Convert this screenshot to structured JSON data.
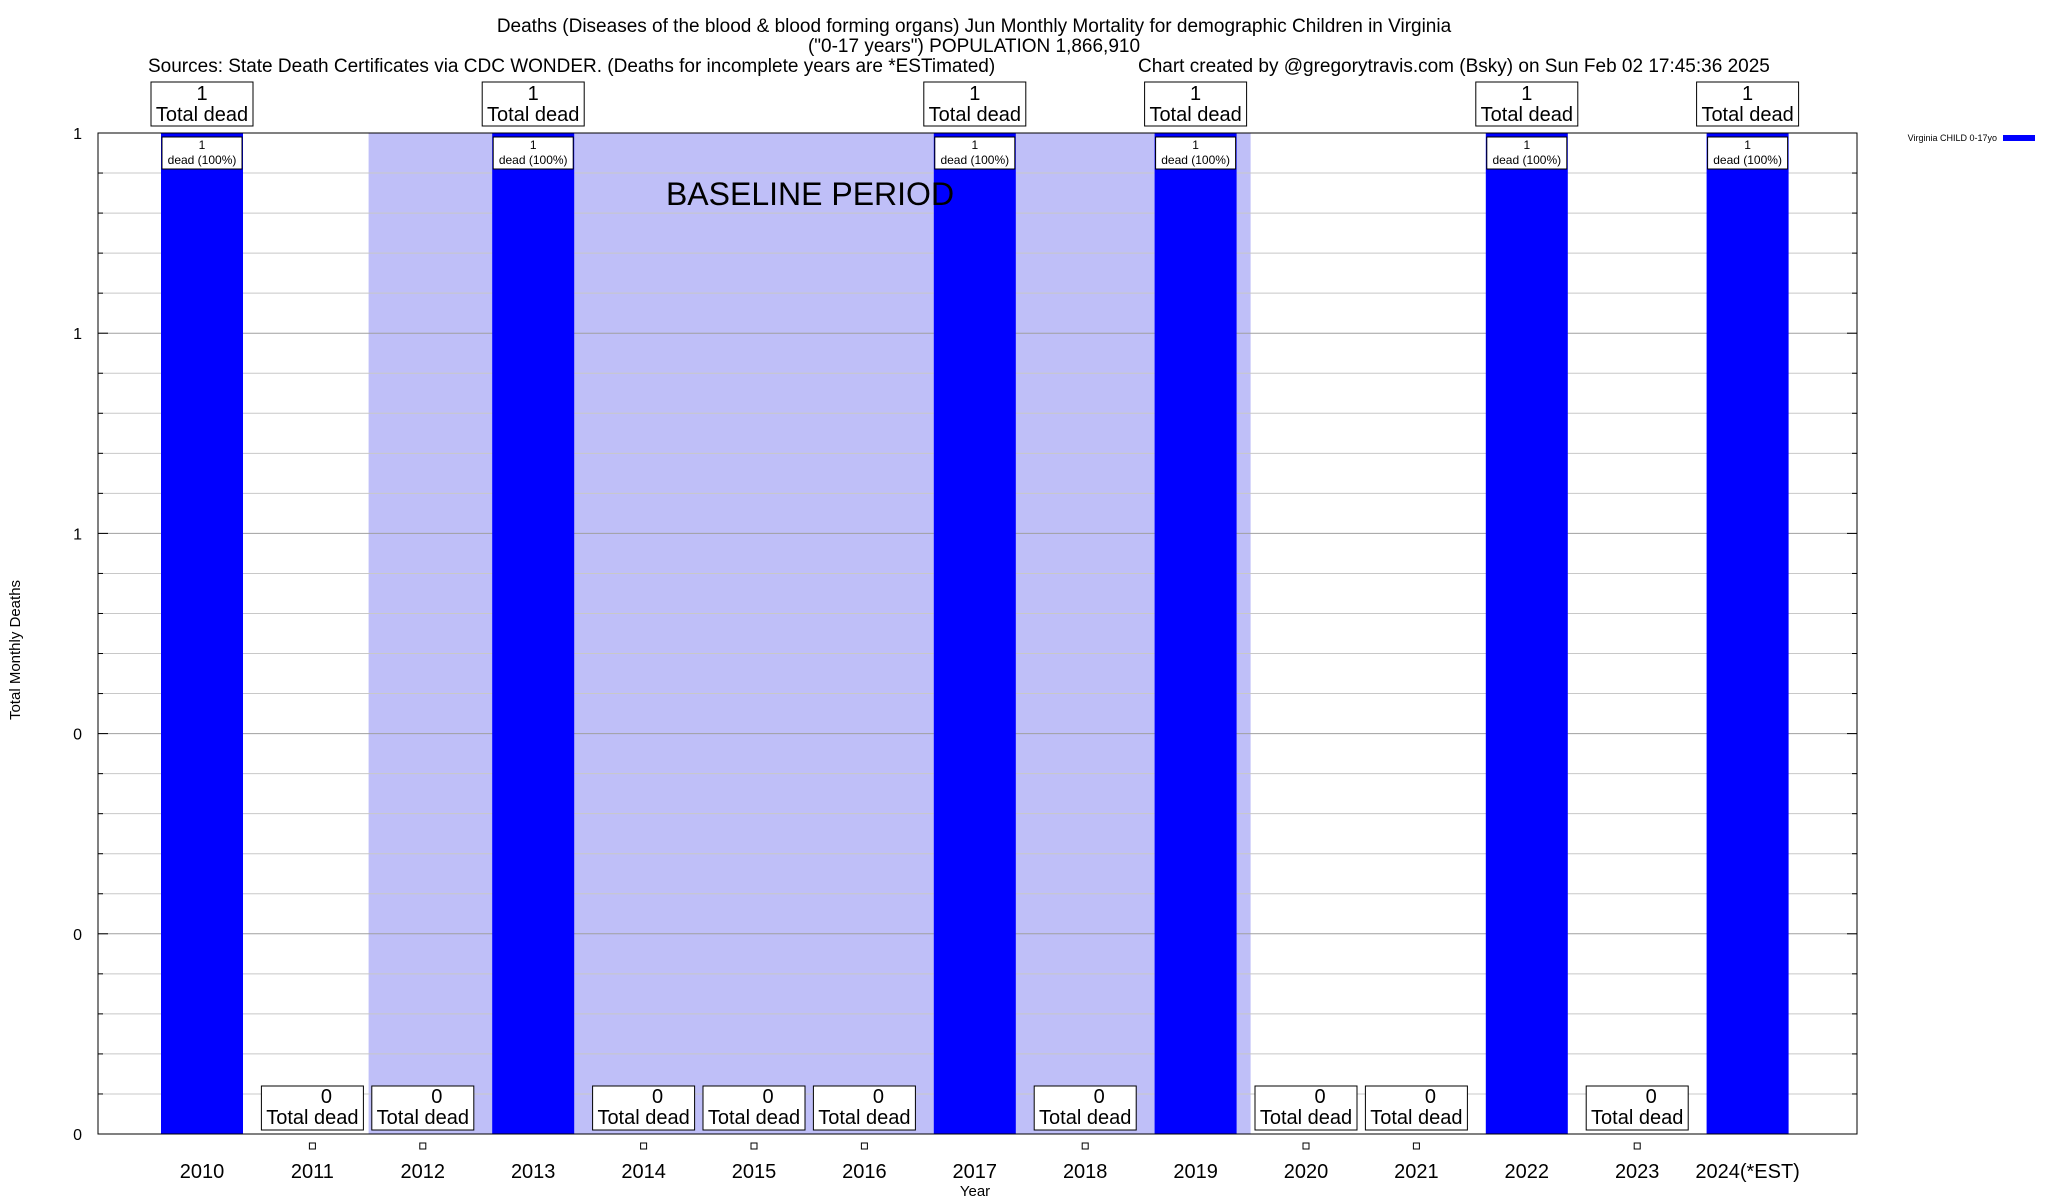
{
  "chart_data": {
    "type": "bar",
    "title_lines": [
      "Deaths (Diseases of the blood & blood forming organs) Jun Monthly Mortality for demographic Children in Virginia",
      "(\"0-17 years\") POPULATION 1,866,910"
    ],
    "sources_text": "Sources: State Death Certificates via CDC WONDER. (Deaths for incomplete years are *ESTimated)",
    "credit_text": "Chart created by @gregorytravis.com (Bsky) on Sun Feb 02 17:45:36 2025",
    "xlabel": "Year",
    "ylabel": "Total Monthly Deaths",
    "ylim": [
      0,
      1
    ],
    "ytick_labels": [
      "0",
      "0",
      "0",
      "1",
      "1",
      "1"
    ],
    "categories": [
      "2010",
      "2011",
      "2012",
      "2013",
      "2014",
      "2015",
      "2016",
      "2017",
      "2018",
      "2019",
      "2020",
      "2021",
      "2022",
      "2023",
      "2024(*EST)"
    ],
    "series": [
      {
        "name": "Virginia CHILD 0-17yo",
        "color": "#0000ff",
        "values": [
          1,
          0,
          0,
          1,
          0,
          0,
          0,
          1,
          0,
          1,
          0,
          0,
          1,
          0,
          1
        ]
      }
    ],
    "total_label_word": "Total dead",
    "inbar_count": "1",
    "inbar_label": "dead (100%)",
    "baseline": {
      "label": "BASELINE PERIOD",
      "color": "#bfbff8",
      "start": "2012",
      "end": "2019"
    },
    "legend_position": "top-right",
    "grid": true
  }
}
